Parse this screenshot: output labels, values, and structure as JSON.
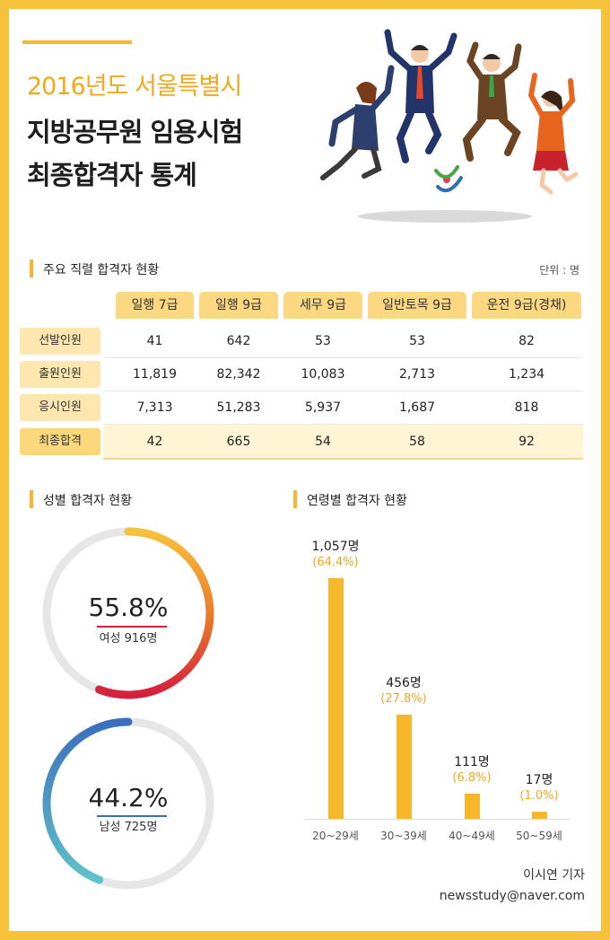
{
  "title": {
    "line1": "2016년도 서울특별시",
    "line2": "지방공무원 임용시험",
    "line3": "최종합격자 통계"
  },
  "table_section": {
    "label": "주요 직렬 합격자 현황",
    "unit": "단위 : 명",
    "columns": [
      "일행 7급",
      "일행 9급",
      "세무 9급",
      "일반토목 9급",
      "운전 9급(경채)"
    ],
    "rows": [
      {
        "label": "선발인원",
        "values": [
          "41",
          "642",
          "53",
          "53",
          "82"
        ]
      },
      {
        "label": "출원인원",
        "values": [
          "11,819",
          "82,342",
          "10,083",
          "2,713",
          "1,234"
        ]
      },
      {
        "label": "응시인원",
        "values": [
          "7,313",
          "51,283",
          "5,937",
          "1,687",
          "818"
        ]
      },
      {
        "label": "최종합격",
        "values": [
          "42",
          "665",
          "54",
          "58",
          "92"
        ]
      }
    ]
  },
  "gender_section": {
    "label": "성별 합격자 현황"
  },
  "age_section": {
    "label": "연령별 합격자 현황"
  },
  "chart_data": [
    {
      "type": "pie",
      "slices": [
        {
          "name": "여성",
          "value": 916,
          "percent": 55.8,
          "percent_label": "55.8%",
          "count_label": "916명",
          "color": "#f0a81e"
        },
        {
          "name": "남성",
          "value": 725,
          "percent": 44.2,
          "percent_label": "44.2%",
          "count_label": "725명",
          "color": "#3b6fbd"
        }
      ]
    },
    {
      "type": "bar",
      "categories": [
        "20~29세",
        "30~39세",
        "40~49세",
        "50~59세"
      ],
      "values": [
        1057,
        456,
        111,
        17
      ],
      "value_labels": [
        "1,057명",
        "456명",
        "111명",
        "17명"
      ],
      "percent_labels": [
        "(64.4%)",
        "(27.8%)",
        "(6.8%)",
        "(1.0%)"
      ],
      "color": "#f6b82a"
    }
  ],
  "colors": {
    "accent": "#f6b82a",
    "frame": "#f6c13b",
    "female_gradient": [
      "#f6c13b",
      "#e8762a",
      "#d51f3f"
    ],
    "male_gradient": [
      "#3b6fbd",
      "#5fc2c9"
    ]
  },
  "credit": {
    "reporter": "이시연 기자",
    "email": "newsstudy@naver.com"
  }
}
